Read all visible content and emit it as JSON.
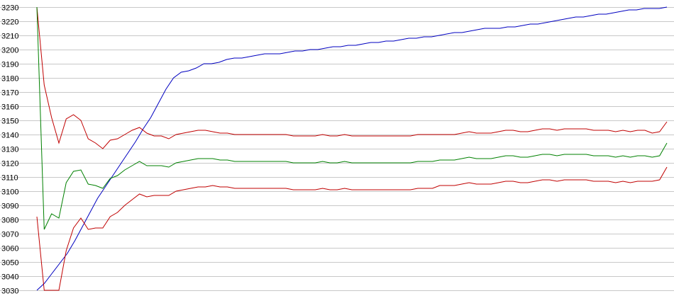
{
  "chart_data": {
    "type": "line",
    "title": "",
    "xlabel": "",
    "ylabel": "",
    "ylim": [
      3030,
      3230
    ],
    "yticks": [
      3030,
      3040,
      3050,
      3060,
      3070,
      3080,
      3090,
      3100,
      3110,
      3120,
      3130,
      3140,
      3150,
      3160,
      3170,
      3180,
      3190,
      3200,
      3210,
      3220,
      3230
    ],
    "grid": true,
    "legend": "none",
    "series": [
      {
        "color": "#0000c0",
        "values": [
          3030,
          3035,
          3042,
          3049,
          3056,
          3065,
          3075,
          3085,
          3095,
          3103,
          3111,
          3119,
          3127,
          3135,
          3144,
          3152,
          3162,
          3172,
          3180,
          3184,
          3185,
          3187,
          3190,
          3190,
          3191,
          3193,
          3194,
          3194,
          3195,
          3196,
          3197,
          3197,
          3197,
          3198,
          3199,
          3199,
          3200,
          3200,
          3201,
          3202,
          3202,
          3203,
          3203,
          3204,
          3205,
          3205,
          3206,
          3206,
          3207,
          3208,
          3208,
          3209,
          3209,
          3210,
          3211,
          3212,
          3212,
          3213,
          3214,
          3215,
          3215,
          3215,
          3216,
          3216,
          3217,
          3218,
          3218,
          3219,
          3220,
          3221,
          3222,
          3223,
          3223,
          3224,
          3225,
          3225,
          3226,
          3227,
          3228,
          3228,
          3229,
          3229,
          3229,
          3230
        ]
      },
      {
        "color": "#c00000",
        "values": [
          3230,
          3175,
          3152,
          3134,
          3151,
          3154,
          3150,
          3137,
          3134,
          3130,
          3136,
          3137,
          3140,
          3143,
          3145,
          3141,
          3139,
          3139,
          3137,
          3140,
          3141,
          3142,
          3143,
          3143,
          3142,
          3141,
          3141,
          3140,
          3140,
          3140,
          3140,
          3140,
          3140,
          3140,
          3140,
          3139,
          3139,
          3139,
          3139,
          3140,
          3139,
          3139,
          3140,
          3139,
          3139,
          3139,
          3139,
          3139,
          3139,
          3139,
          3139,
          3139,
          3140,
          3140,
          3140,
          3140,
          3140,
          3140,
          3141,
          3142,
          3141,
          3141,
          3141,
          3142,
          3143,
          3143,
          3142,
          3142,
          3143,
          3144,
          3144,
          3143,
          3144,
          3144,
          3144,
          3144,
          3143,
          3143,
          3143,
          3142,
          3143,
          3142,
          3143,
          3143,
          3141,
          3142,
          3149
        ]
      },
      {
        "color": "#008000",
        "values": [
          3230,
          3073,
          3084,
          3081,
          3106,
          3114,
          3115,
          3105,
          3104,
          3102,
          3109,
          3111,
          3115,
          3118,
          3121,
          3118,
          3118,
          3118,
          3117,
          3120,
          3121,
          3122,
          3123,
          3123,
          3123,
          3122,
          3122,
          3121,
          3121,
          3121,
          3121,
          3121,
          3121,
          3121,
          3121,
          3120,
          3120,
          3120,
          3120,
          3121,
          3120,
          3120,
          3121,
          3120,
          3120,
          3120,
          3120,
          3120,
          3120,
          3120,
          3120,
          3120,
          3121,
          3121,
          3121,
          3122,
          3122,
          3122,
          3123,
          3124,
          3123,
          3123,
          3123,
          3124,
          3125,
          3125,
          3124,
          3124,
          3125,
          3126,
          3126,
          3125,
          3126,
          3126,
          3126,
          3126,
          3125,
          3125,
          3125,
          3124,
          3125,
          3124,
          3125,
          3125,
          3124,
          3125,
          3134
        ]
      },
      {
        "color": "#c00000",
        "values": [
          3082,
          3030,
          3030,
          3030,
          3058,
          3074,
          3081,
          3073,
          3074,
          3074,
          3082,
          3085,
          3090,
          3094,
          3098,
          3096,
          3097,
          3097,
          3097,
          3100,
          3101,
          3102,
          3103,
          3103,
          3104,
          3103,
          3103,
          3102,
          3102,
          3102,
          3102,
          3102,
          3102,
          3102,
          3102,
          3101,
          3101,
          3101,
          3101,
          3102,
          3101,
          3101,
          3102,
          3101,
          3101,
          3101,
          3101,
          3101,
          3101,
          3101,
          3101,
          3101,
          3102,
          3102,
          3102,
          3104,
          3104,
          3104,
          3105,
          3106,
          3105,
          3105,
          3105,
          3106,
          3107,
          3107,
          3106,
          3106,
          3107,
          3108,
          3108,
          3107,
          3108,
          3108,
          3108,
          3108,
          3107,
          3107,
          3107,
          3106,
          3107,
          3106,
          3107,
          3107,
          3107,
          3108,
          3117
        ]
      }
    ]
  }
}
